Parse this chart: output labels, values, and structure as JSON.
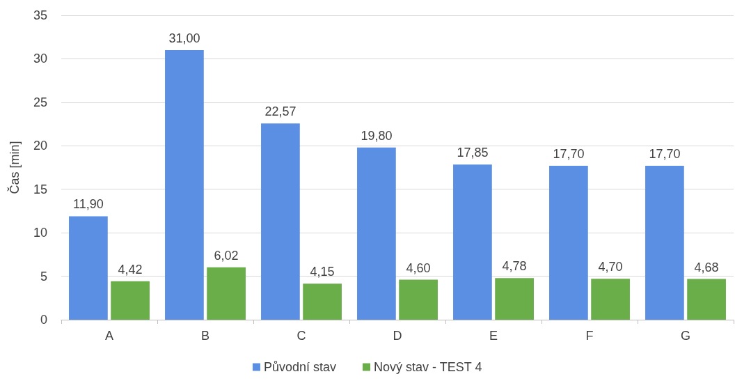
{
  "chart_data": {
    "type": "bar",
    "ylabel": "Čas [min]",
    "categories": [
      "A",
      "B",
      "C",
      "D",
      "E",
      "F",
      "G"
    ],
    "series": [
      {
        "name": "Původní stav",
        "color": "#5b8fe3",
        "values": [
          11.9,
          31.0,
          22.57,
          19.8,
          17.85,
          17.7,
          17.7
        ],
        "value_labels": [
          "11,90",
          "31,00",
          "22,57",
          "19,80",
          "17,85",
          "17,70",
          "17,70"
        ]
      },
      {
        "name": "Nový stav - TEST 4",
        "color": "#6aae4a",
        "values": [
          4.42,
          6.02,
          4.15,
          4.6,
          4.78,
          4.7,
          4.68
        ],
        "value_labels": [
          "4,42",
          "6,02",
          "4,15",
          "4,60",
          "4,78",
          "4,70",
          "4,68"
        ]
      }
    ],
    "ylim": [
      0,
      35
    ],
    "yticks": [
      0,
      5,
      10,
      15,
      20,
      25,
      30,
      35
    ],
    "grid": "y",
    "legend": "bottom"
  }
}
